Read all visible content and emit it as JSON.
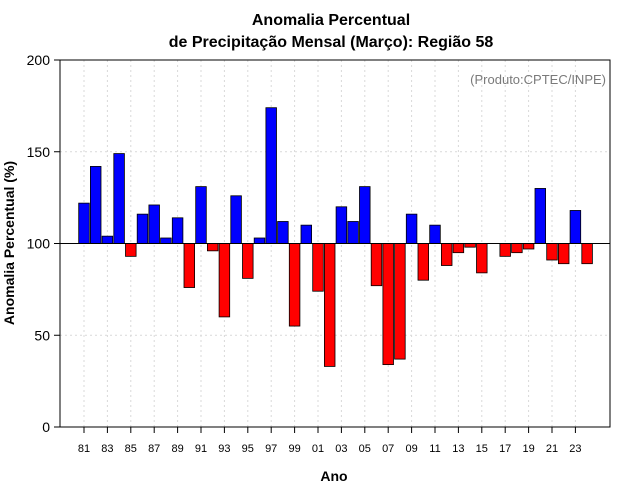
{
  "chart_data": {
    "type": "bar",
    "title_line1": "Anomalia Percentual",
    "title_line2": "de Precipitação Mensal (Março): Região 58",
    "xlabel": "Ano",
    "ylabel": "Anomalia Percentual (%)",
    "credit": "(Produto:CPTEC/INPE)",
    "baseline": 100,
    "ylim": [
      0,
      200
    ],
    "yticks": [
      0,
      50,
      100,
      150,
      200
    ],
    "grid": true,
    "colors": {
      "above": "#0000ff",
      "below": "#ff0000",
      "outline": "#000000",
      "grid": "#d9d9d9"
    },
    "categories": [
      "81",
      "82",
      "83",
      "84",
      "85",
      "86",
      "87",
      "88",
      "89",
      "90",
      "91",
      "92",
      "93",
      "94",
      "95",
      "96",
      "97",
      "98",
      "99",
      "00",
      "01",
      "02",
      "03",
      "04",
      "05",
      "06",
      "07",
      "08",
      "09",
      "10",
      "11",
      "12",
      "13",
      "14",
      "15",
      "16",
      "17",
      "18",
      "19",
      "20",
      "21",
      "22",
      "23",
      "24"
    ],
    "tick_labels": [
      "81",
      "83",
      "85",
      "87",
      "89",
      "91",
      "93",
      "95",
      "97",
      "99",
      "01",
      "03",
      "05",
      "07",
      "09",
      "11",
      "13",
      "15",
      "17",
      "19",
      "21",
      "23"
    ],
    "values": [
      122,
      142,
      104,
      149,
      93,
      116,
      121,
      103,
      114,
      76,
      131,
      96,
      60,
      126,
      81,
      103,
      174,
      112,
      55,
      110,
      74,
      33,
      120,
      112,
      131,
      77,
      34,
      37,
      116,
      80,
      110,
      88,
      95,
      98,
      84,
      100,
      93,
      95,
      97,
      130,
      91,
      89,
      118,
      89
    ]
  }
}
